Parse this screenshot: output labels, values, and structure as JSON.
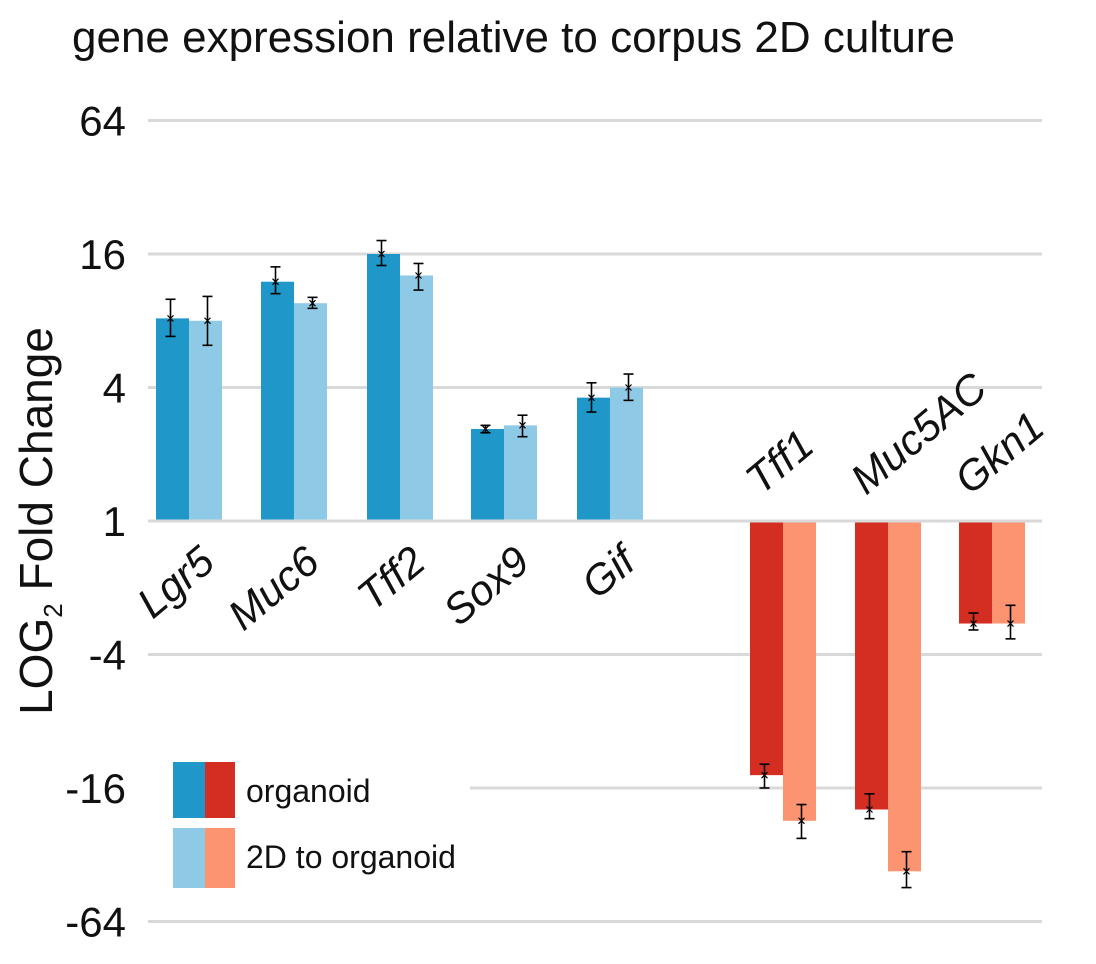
{
  "chart_data": {
    "type": "bar",
    "title": "gene expression relative to corpus 2D culture",
    "ylabel": "LOG",
    "ylabel_subscript": "2",
    "ylabel_suffix": " Fold Change",
    "yscale": "log2",
    "ylim": [
      -64,
      64
    ],
    "yticks": [
      "64",
      "16",
      "4",
      "1",
      "-4",
      "-16",
      "-64"
    ],
    "grid": true,
    "categories": [
      "Lgr5",
      "Muc6",
      "Tff2",
      "Sox9",
      "Gif",
      "Tff1",
      "Muc5AC",
      "Gkn1"
    ],
    "series": [
      {
        "name": "organoid",
        "values": [
          8.2,
          12.0,
          16.0,
          2.6,
          3.6,
          -14.0,
          -20.0,
          -2.9
        ]
      },
      {
        "name": "2D to organoid",
        "values": [
          8.0,
          9.6,
          12.8,
          2.7,
          4.0,
          -22.5,
          -38.0,
          -2.9
        ]
      }
    ],
    "errors": {
      "organoid": [
        [
          6.8,
          10.0
        ],
        [
          10.6,
          14.0
        ],
        [
          14.2,
          18.4
        ],
        [
          2.5,
          2.7
        ],
        [
          3.1,
          4.2
        ],
        [
          -16.0,
          -12.5
        ],
        [
          -22.0,
          -17.0
        ],
        [
          -3.1,
          -2.6
        ]
      ],
      "2D to organoid": [
        [
          6.2,
          10.3
        ],
        [
          9.1,
          10.2
        ],
        [
          11.0,
          14.5
        ],
        [
          2.4,
          3.0
        ],
        [
          3.5,
          4.6
        ],
        [
          -27.0,
          -19.0
        ],
        [
          -45.0,
          -31.0
        ],
        [
          -3.4,
          -2.4
        ]
      ]
    },
    "colors": {
      "up_organoid": "#1f97c9",
      "up_2d": "#8ecae6",
      "down_organoid": "#d42e23",
      "down_2d": "#fc9472",
      "grid": "#d9d9d9",
      "error": "#000000"
    },
    "legend": {
      "placement": "bottom-left",
      "entries": [
        "organoid",
        "2D to organoid"
      ]
    }
  }
}
